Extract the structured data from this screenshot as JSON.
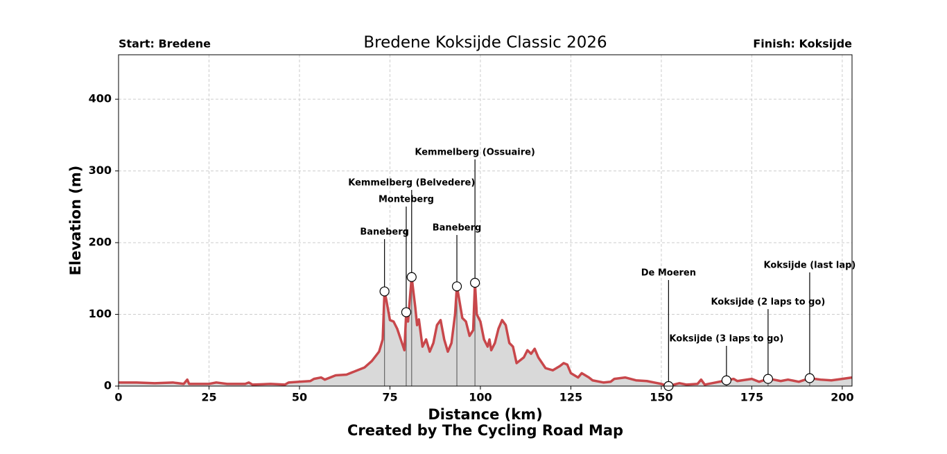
{
  "chart_data": {
    "type": "area",
    "title": "Bredene Koksijde Classic 2026",
    "start_label": "Start: Bredene",
    "finish_label": "Finish: Koksijde",
    "x_label": "Distance (km)",
    "y_label": "Elevation (m)",
    "credit": "Created by The Cycling Road Map",
    "line_color": "#c8474b",
    "fill_color": "#d9d9d9",
    "grid": true,
    "xlim": [
      0,
      202.7
    ],
    "ylim": [
      0,
      462
    ],
    "xticks": [
      0,
      25,
      50,
      75,
      100,
      125,
      150,
      175,
      200
    ],
    "yticks": [
      0,
      100,
      200,
      300,
      400
    ],
    "x": [
      0,
      5,
      10,
      15,
      18,
      19,
      19.5,
      25,
      27,
      30,
      35,
      36,
      37,
      42,
      46,
      47,
      50,
      53,
      54,
      56,
      57,
      60,
      63,
      66,
      68,
      70,
      72,
      73,
      73.5,
      74,
      75,
      76,
      77,
      78,
      79,
      79.5,
      80,
      81,
      82,
      82.5,
      83,
      84,
      85,
      86,
      87,
      88,
      89,
      90,
      91,
      92,
      93,
      93.5,
      94,
      95,
      96,
      97,
      98,
      98.5,
      99,
      100,
      101,
      102,
      102.5,
      103,
      104,
      105,
      106,
      107,
      108,
      109,
      110,
      112,
      113,
      114,
      115,
      116,
      118,
      120,
      122,
      123,
      124,
      125,
      127,
      128,
      130,
      131,
      134,
      136,
      137,
      140,
      143,
      146,
      148,
      150,
      152,
      155,
      157,
      160,
      161,
      162,
      165,
      168,
      170,
      171,
      175,
      177,
      179.5,
      181,
      183,
      185,
      188,
      191,
      194,
      197,
      200,
      202.7
    ],
    "values": [
      5,
      5,
      4,
      5,
      3,
      9,
      3,
      3,
      5,
      3,
      3,
      5,
      2,
      3,
      2,
      5,
      6,
      7,
      10,
      12,
      9,
      15,
      16,
      22,
      26,
      35,
      48,
      65,
      132,
      120,
      92,
      90,
      80,
      65,
      50,
      103,
      90,
      152,
      110,
      85,
      93,
      55,
      65,
      48,
      60,
      85,
      92,
      65,
      48,
      60,
      100,
      139,
      125,
      95,
      90,
      70,
      78,
      144,
      100,
      90,
      65,
      55,
      65,
      50,
      60,
      80,
      92,
      85,
      60,
      55,
      32,
      40,
      50,
      45,
      52,
      40,
      25,
      22,
      28,
      32,
      30,
      18,
      12,
      18,
      12,
      8,
      5,
      6,
      10,
      12,
      8,
      7,
      5,
      3,
      0,
      4,
      2,
      3,
      9,
      2,
      5,
      8,
      10,
      7,
      10,
      6,
      10,
      9,
      7,
      9,
      6,
      11,
      9,
      8,
      10,
      12
    ],
    "annotations": [
      {
        "name": "Baneberg",
        "x": 73.5,
        "elevation": 132
      },
      {
        "name": "Monteberg",
        "x": 79.5,
        "elevation": 103
      },
      {
        "name": "Kemmelberg (Belvedere)",
        "x": 81,
        "elevation": 152
      },
      {
        "name": "Baneberg",
        "x": 93.5,
        "elevation": 139
      },
      {
        "name": "Kemmelberg (Ossuaire)",
        "x": 98.5,
        "elevation": 144
      },
      {
        "name": "De Moeren",
        "x": 152,
        "elevation": 0
      },
      {
        "name": "Koksijde (3 laps to go)",
        "x": 168,
        "elevation": 8
      },
      {
        "name": "Koksijde (2 laps to go)",
        "x": 179.5,
        "elevation": 10
      },
      {
        "name": "Koksijde (last lap)",
        "x": 191,
        "elevation": 11
      }
    ]
  }
}
